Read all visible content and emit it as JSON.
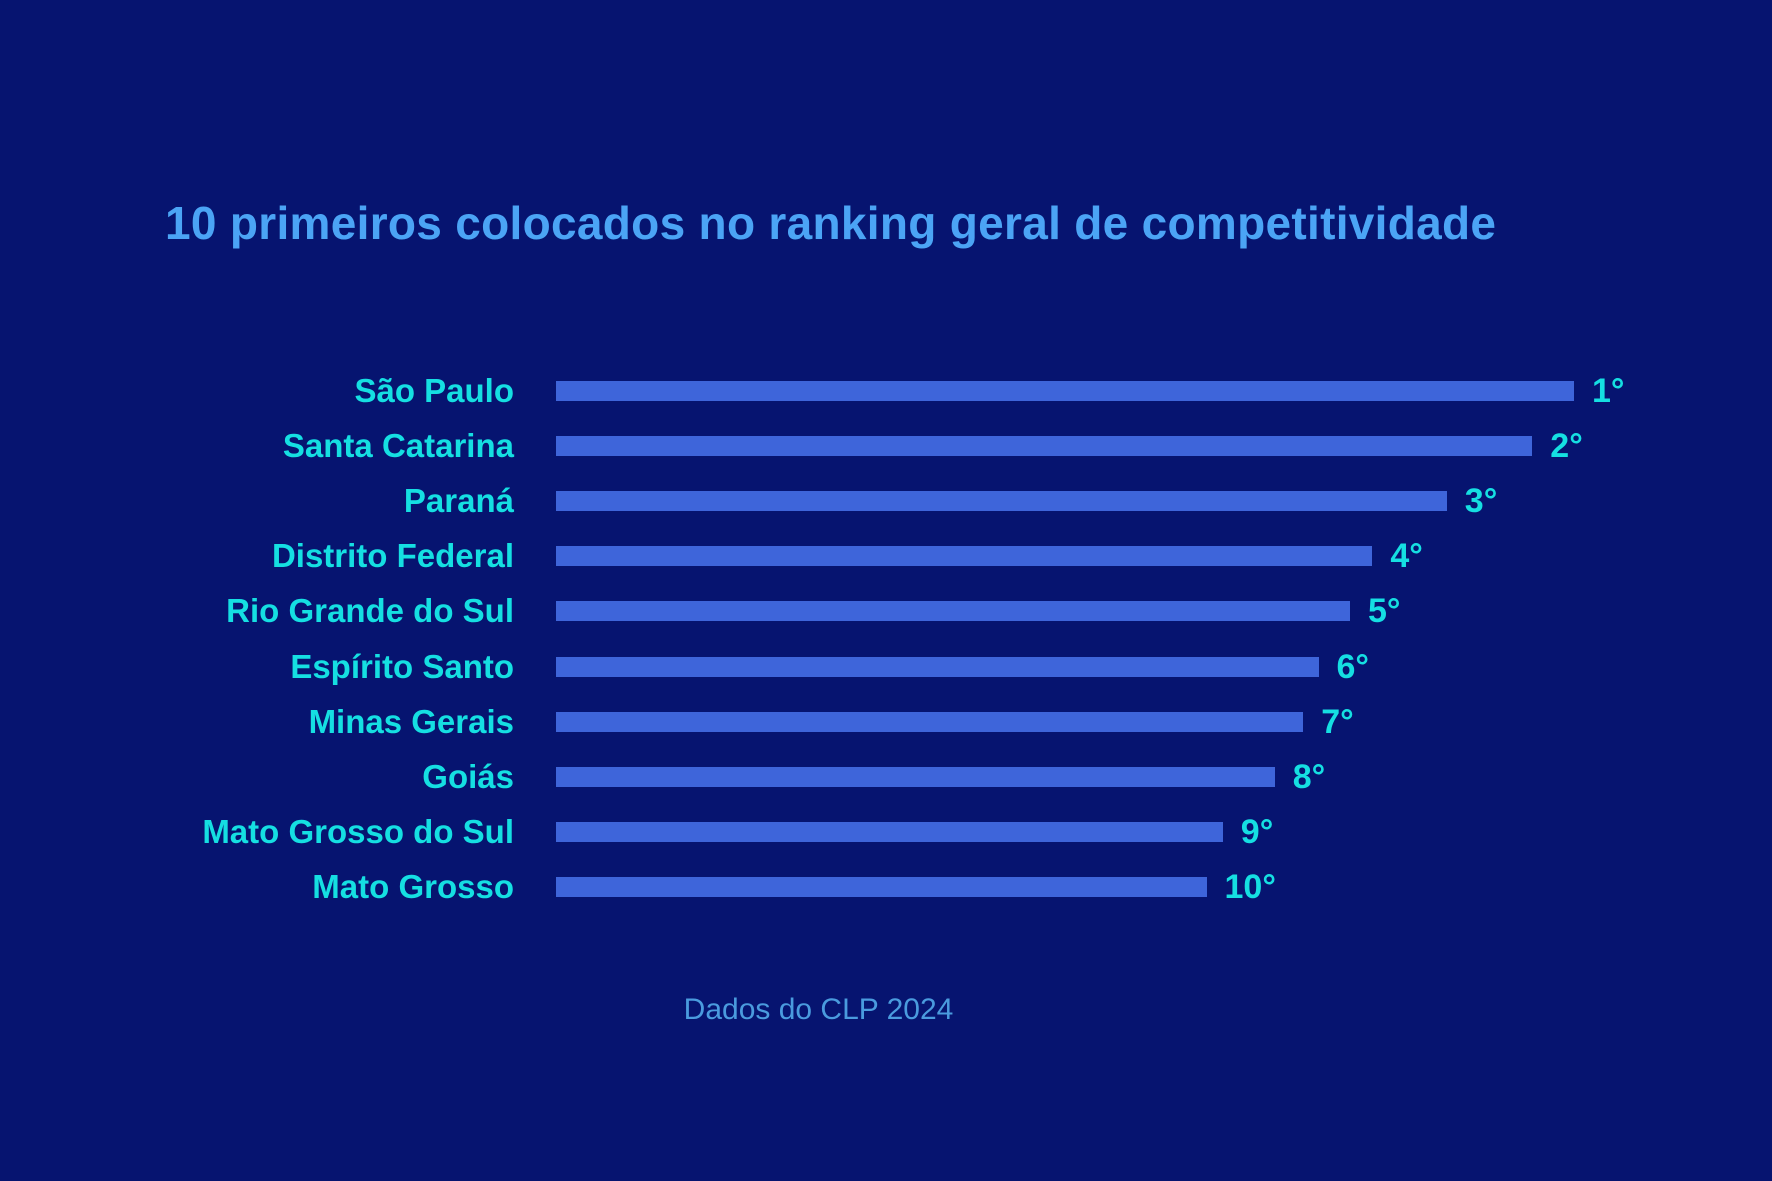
{
  "canvas": {
    "background_color": "#061470"
  },
  "title": {
    "text": "10 primeiros colocados no ranking geral de competitividade",
    "color": "#4BA4F5"
  },
  "footer": {
    "text": "Dados do CLP 2024",
    "color": "#4A9BDE"
  },
  "chart_data": {
    "type": "bar",
    "orientation": "horizontal",
    "title": "10 primeiros colocados no ranking geral de competitividade",
    "source_note": "Dados do CLP 2024",
    "axes_visible": false,
    "grid": false,
    "legend": false,
    "value_labels_position": "end-of-bar",
    "bar_color": "#3E65DA",
    "category_label_color": "#15DFE2",
    "value_label_color": "#15DFE2",
    "categories": [
      "São Paulo",
      "Santa Catarina",
      "Paraná",
      "Distrito Federal",
      "Rio Grande do Sul",
      "Espírito Santo",
      "Minas Gerais",
      "Goiás",
      "Mato Grosso do Sul",
      "Mato Grosso"
    ],
    "rank_labels": [
      "1°",
      "2°",
      "3°",
      "4°",
      "5°",
      "6°",
      "7°",
      "8°",
      "9°",
      "10°"
    ],
    "values_relative_length_pct": [
      100,
      95.9,
      87.5,
      80.2,
      78.0,
      74.9,
      73.4,
      70.6,
      65.5,
      63.9
    ],
    "rows": [
      {
        "label": "São Paulo",
        "rank": "1°",
        "length_pct": 100
      },
      {
        "label": "Santa Catarina",
        "rank": "2°",
        "length_pct": 95.9
      },
      {
        "label": "Paraná",
        "rank": "3°",
        "length_pct": 87.5
      },
      {
        "label": "Distrito Federal",
        "rank": "4°",
        "length_pct": 80.2
      },
      {
        "label": "Rio Grande do Sul",
        "rank": "5°",
        "length_pct": 78.0
      },
      {
        "label": "Espírito Santo",
        "rank": "6°",
        "length_pct": 74.9
      },
      {
        "label": "Minas Gerais",
        "rank": "7°",
        "length_pct": 73.4
      },
      {
        "label": "Goiás",
        "rank": "8°",
        "length_pct": 70.6
      },
      {
        "label": "Mato Grosso do Sul",
        "rank": "9°",
        "length_pct": 65.5
      },
      {
        "label": "Mato Grosso",
        "rank": "10°",
        "length_pct": 63.9
      }
    ]
  }
}
